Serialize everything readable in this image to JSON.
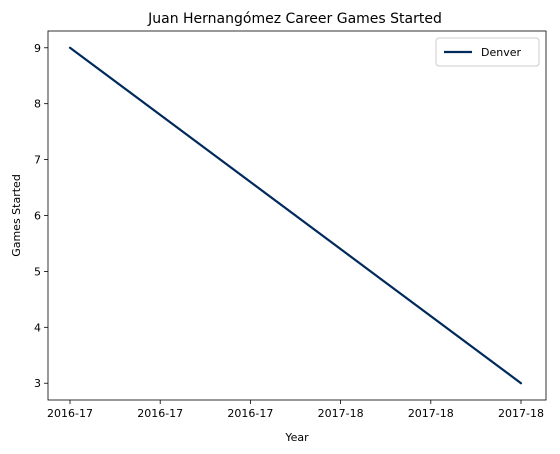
{
  "chart_data": {
    "type": "line",
    "title": "Juan Hernangómez Career Games Started",
    "xlabel": "Year",
    "ylabel": "Games Started",
    "x": [
      0,
      1
    ],
    "x_tick_labels": [
      "2016-17",
      "2016-17",
      "2016-17",
      "2017-18",
      "2017-18",
      "2017-18"
    ],
    "y_ticks": [
      3,
      4,
      5,
      6,
      7,
      8,
      9
    ],
    "ylim": [
      2.7,
      9.3
    ],
    "grid": false,
    "legend_position": "top-right",
    "series": [
      {
        "name": "Denver",
        "x_labels": [
          "2016-17",
          "2017-18"
        ],
        "values": [
          9,
          3
        ],
        "color": "#002a5c"
      }
    ]
  }
}
